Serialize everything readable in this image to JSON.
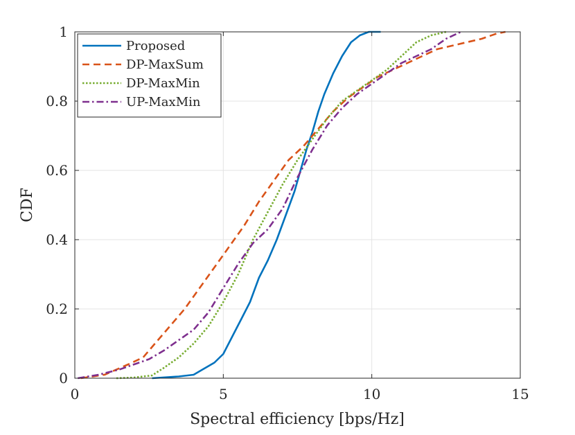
{
  "chart_data": {
    "type": "line",
    "title": "",
    "xlabel": "Spectral efficiency [bps/Hz]",
    "ylabel": "CDF",
    "xlim": [
      0,
      15
    ],
    "ylim": [
      0,
      1
    ],
    "xticks": [
      0,
      5,
      10,
      15
    ],
    "yticks": [
      0,
      0.2,
      0.4,
      0.6,
      0.8,
      1
    ],
    "xtick_labels": [
      "0",
      "5",
      "10",
      "15"
    ],
    "ytick_labels": [
      "0",
      "0.2",
      "0.4",
      "0.6",
      "0.8",
      "1"
    ],
    "grid": true,
    "legend_position": "top-left",
    "series": [
      {
        "name": "Proposed",
        "color": "#0072BD",
        "style": "solid",
        "x": [
          2.6,
          3.5,
          4.0,
          4.3,
          4.7,
          5.0,
          5.3,
          5.6,
          5.9,
          6.2,
          6.5,
          6.8,
          7.1,
          7.4,
          7.6,
          7.8,
          8.0,
          8.2,
          8.4,
          8.7,
          9.0,
          9.3,
          9.6,
          9.9,
          10.3
        ],
        "y": [
          0.0,
          0.005,
          0.01,
          0.025,
          0.045,
          0.07,
          0.12,
          0.17,
          0.22,
          0.29,
          0.34,
          0.4,
          0.47,
          0.54,
          0.6,
          0.66,
          0.71,
          0.77,
          0.82,
          0.88,
          0.93,
          0.97,
          0.99,
          1.0,
          1.0
        ]
      },
      {
        "name": "DP-MaxSum",
        "color": "#D95319",
        "style": "dashed",
        "x": [
          0.2,
          1.0,
          1.8,
          2.3,
          2.7,
          3.2,
          3.7,
          4.2,
          4.7,
          5.2,
          5.7,
          6.2,
          6.7,
          7.2,
          7.7,
          8.2,
          8.7,
          9.2,
          9.7,
          10.2,
          10.7,
          11.2,
          11.7,
          12.2,
          12.7,
          13.2,
          13.7,
          14.2,
          14.5
        ],
        "y": [
          0.0,
          0.01,
          0.04,
          0.06,
          0.1,
          0.15,
          0.2,
          0.26,
          0.32,
          0.38,
          0.44,
          0.51,
          0.57,
          0.63,
          0.67,
          0.72,
          0.77,
          0.81,
          0.84,
          0.87,
          0.89,
          0.91,
          0.93,
          0.95,
          0.96,
          0.97,
          0.98,
          0.995,
          1.0
        ]
      },
      {
        "name": "DP-MaxMin",
        "color": "#77AC30",
        "style": "dotted",
        "x": [
          1.4,
          2.0,
          2.6,
          3.0,
          3.5,
          4.0,
          4.5,
          5.0,
          5.5,
          6.0,
          6.5,
          7.0,
          7.5,
          8.0,
          8.5,
          9.0,
          9.5,
          10.0,
          10.5,
          11.0,
          11.5,
          12.0,
          12.5
        ],
        "y": [
          0.0,
          0.002,
          0.008,
          0.03,
          0.06,
          0.1,
          0.15,
          0.22,
          0.3,
          0.4,
          0.48,
          0.56,
          0.63,
          0.69,
          0.75,
          0.8,
          0.83,
          0.86,
          0.89,
          0.93,
          0.97,
          0.99,
          1.0
        ]
      },
      {
        "name": "UP-MaxMin",
        "color": "#7E2F8E",
        "style": "dashdot",
        "x": [
          0.1,
          0.8,
          1.5,
          2.0,
          2.5,
          3.0,
          3.5,
          4.0,
          4.5,
          5.0,
          5.5,
          6.0,
          6.5,
          7.0,
          7.5,
          8.0,
          8.5,
          9.0,
          9.5,
          10.0,
          10.5,
          11.0,
          11.5,
          12.0,
          12.5,
          13.0
        ],
        "y": [
          0.0,
          0.01,
          0.025,
          0.04,
          0.055,
          0.08,
          0.11,
          0.14,
          0.19,
          0.26,
          0.33,
          0.39,
          0.43,
          0.49,
          0.58,
          0.66,
          0.73,
          0.78,
          0.82,
          0.85,
          0.88,
          0.91,
          0.93,
          0.95,
          0.98,
          1.0
        ]
      }
    ]
  }
}
